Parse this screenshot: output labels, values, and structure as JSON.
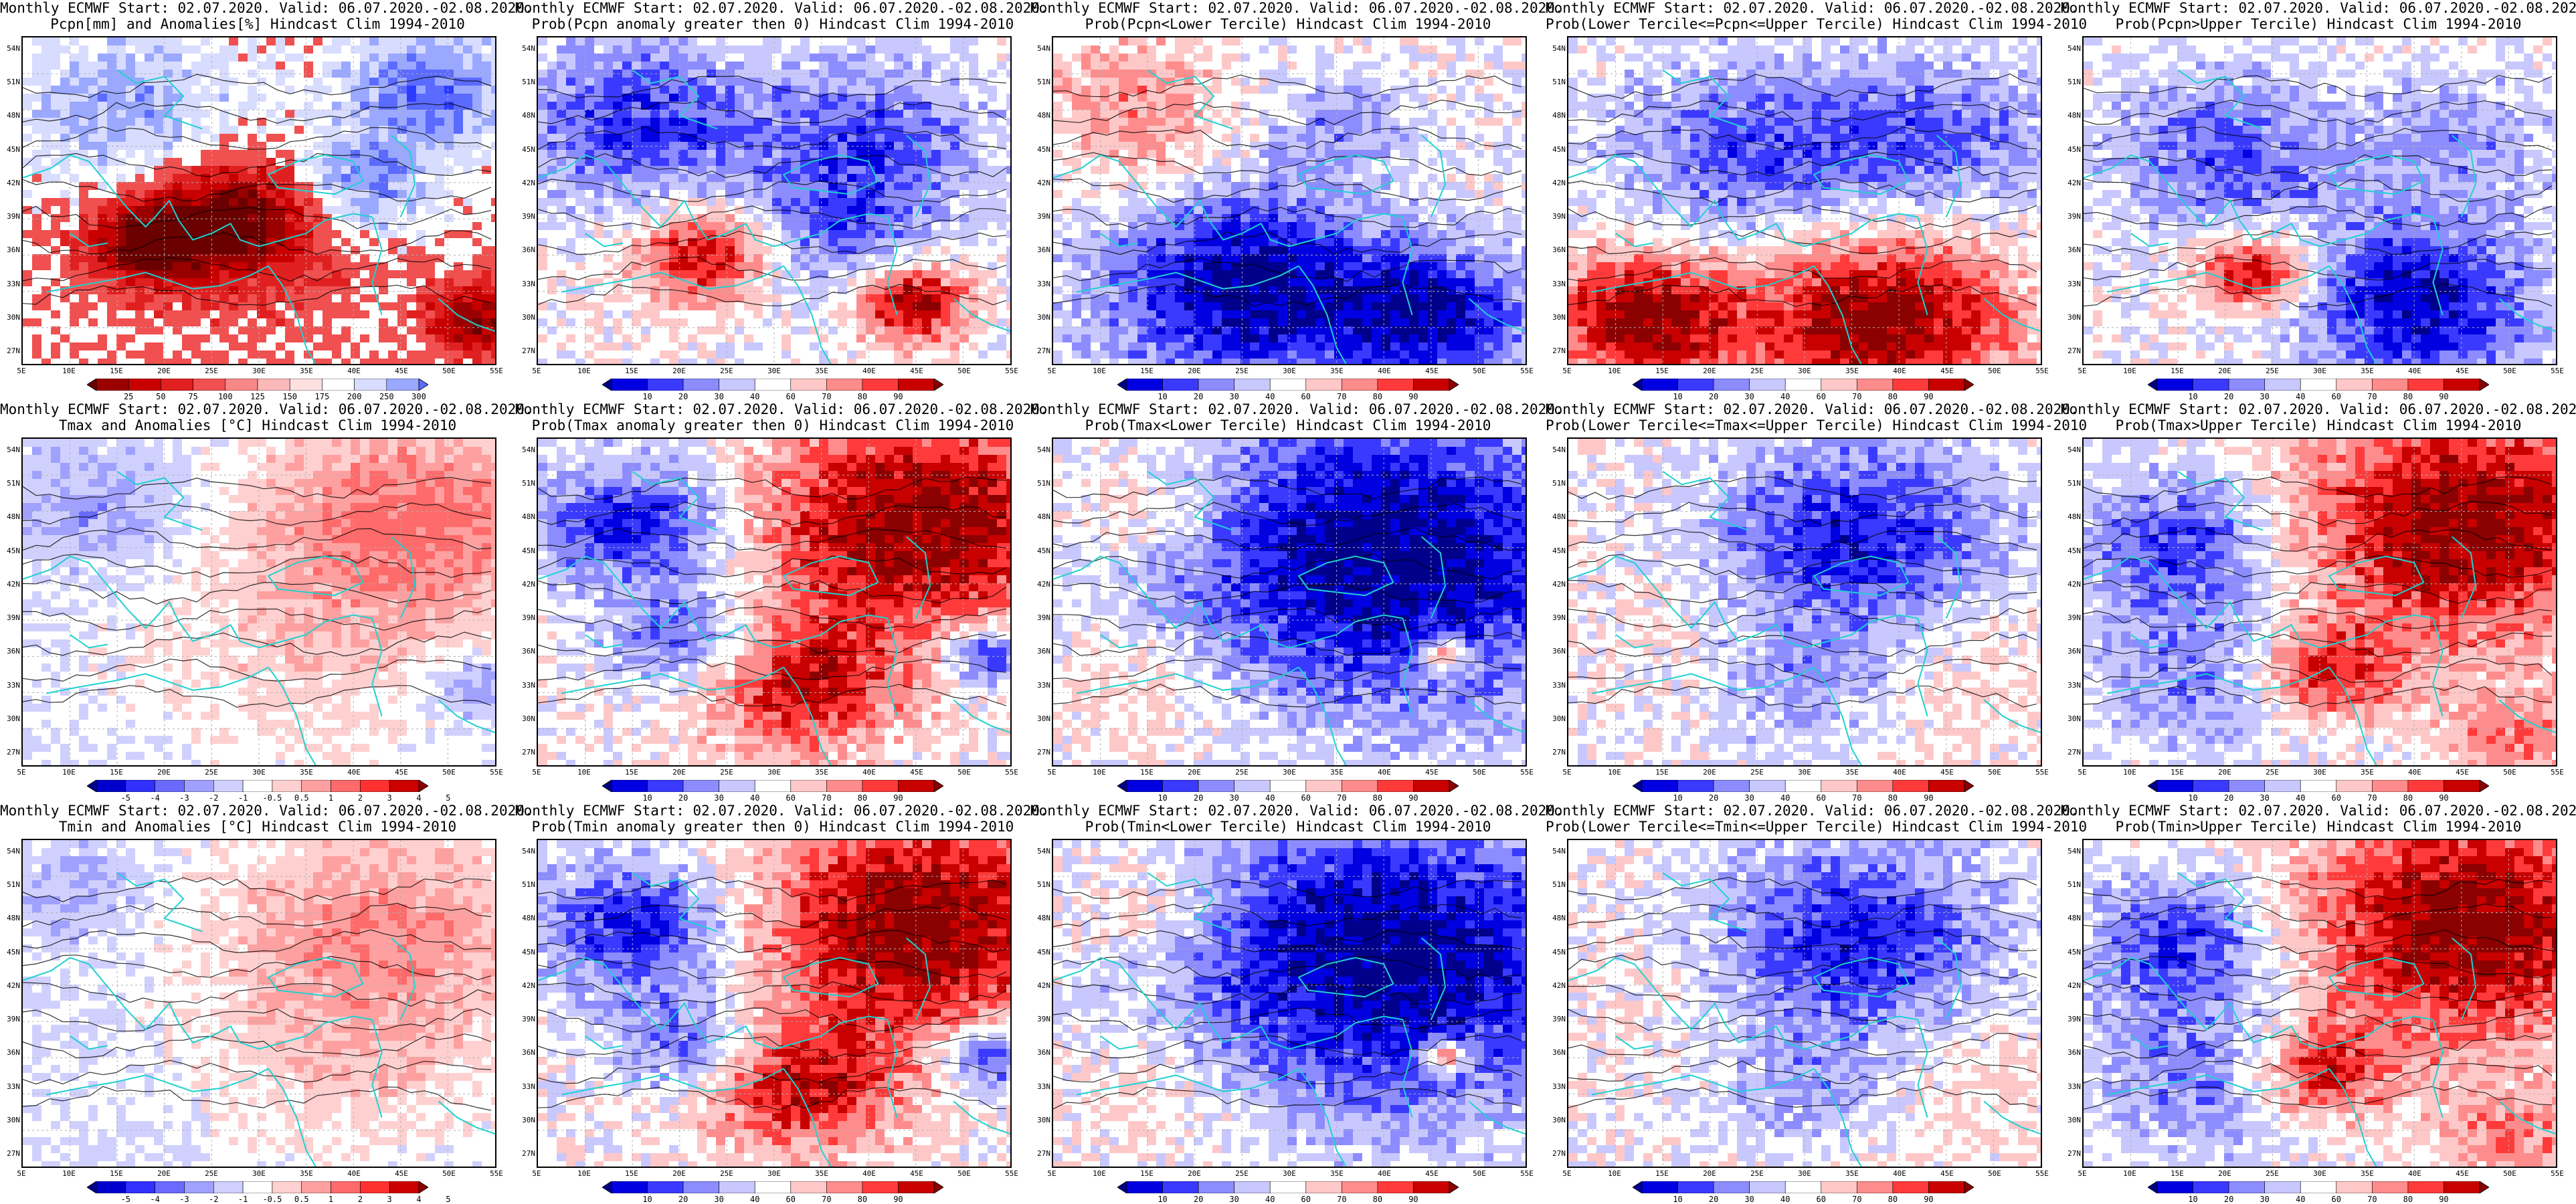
{
  "lat_labels": [
    "54N",
    "51N",
    "48N",
    "45N",
    "42N",
    "39N",
    "36N",
    "33N",
    "30N",
    "27N"
  ],
  "lon_labels": [
    "5E",
    "10E",
    "15E",
    "20E",
    "25E",
    "30E",
    "35E",
    "40E",
    "45E",
    "50E",
    "55E"
  ],
  "rows": [
    {
      "panels": [
        {
          "line1": "Monthly ECMWF Start: 02.07.2020. Valid: 06.07.2020.-02.08.2020.",
          "line2": "Pcpn[mm] and Anomalies[%] Hindcast Clim 1994-2010",
          "scale": "pcpn",
          "field": "pcpn_anom"
        },
        {
          "line1": "Monthly ECMWF Start: 02.07.2020. Valid: 06.07.2020.-02.08.2020.",
          "line2": "Prob(Pcpn anomaly greater then 0) Hindcast Clim 1994-2010",
          "scale": "prob",
          "field": "pcpn_gt0"
        },
        {
          "line1": "Monthly ECMWF Start: 02.07.2020. Valid: 06.07.2020.-02.08.2020.",
          "line2": "Prob(Pcpn<Lower Tercile) Hindcast Clim 1994-2010",
          "scale": "prob",
          "field": "pcpn_low"
        },
        {
          "line1": "Monthly ECMWF Start: 02.07.2020. Valid: 06.07.2020.-02.08.2020.",
          "line2": "Prob(Lower Tercile<=Pcpn<=Upper Tercile) Hindcast Clim 1994-2010",
          "scale": "prob",
          "field": "pcpn_mid"
        },
        {
          "line1": "Monthly ECMWF Start: 02.07.2020. Valid: 06.07.2020.-02.08.2020.",
          "line2": "Prob(Pcpn>Upper Tercile) Hindcast Clim 1994-2010",
          "scale": "prob",
          "field": "pcpn_up"
        }
      ]
    },
    {
      "panels": [
        {
          "line1": "Monthly ECMWF Start: 02.07.2020. Valid: 06.07.2020.-02.08.2020.",
          "line2": "Tmax and Anomalies [°C] Hindcast Clim 1994-2010",
          "scale": "temp",
          "field": "t_anom"
        },
        {
          "line1": "Monthly ECMWF Start: 02.07.2020. Valid: 06.07.2020.-02.08.2020.",
          "line2": "Prob(Tmax anomaly greater then 0) Hindcast Clim 1994-2010",
          "scale": "prob",
          "field": "t_gt0"
        },
        {
          "line1": "Monthly ECMWF Start: 02.07.2020. Valid: 06.07.2020.-02.08.2020.",
          "line2": "Prob(Tmax<Lower Tercile) Hindcast Clim 1994-2010",
          "scale": "prob",
          "field": "t_low"
        },
        {
          "line1": "Monthly ECMWF Start: 02.07.2020. Valid: 06.07.2020.-02.08.2020.",
          "line2": "Prob(Lower Tercile<=Tmax<=Upper Tercile) Hindcast Clim 1994-2010",
          "scale": "prob",
          "field": "t_mid"
        },
        {
          "line1": "Monthly ECMWF Start: 02.07.2020. Valid: 06.07.2020.-02.08.2020.",
          "line2": "Prob(Tmax>Upper Tercile) Hindcast Clim 1994-2010",
          "scale": "prob",
          "field": "t_up"
        }
      ]
    },
    {
      "panels": [
        {
          "line1": "Monthly ECMWF Start: 02.07.2020. Valid: 06.07.2020.-02.08.2020.",
          "line2": "Tmin and Anomalies [°C] Hindcast Clim 1994-2010",
          "scale": "temp",
          "field": "tn_anom"
        },
        {
          "line1": "Monthly ECMWF Start: 02.07.2020. Valid: 06.07.2020.-02.08.2020.",
          "line2": "Prob(Tmin anomaly greater then 0) Hindcast Clim 1994-2010",
          "scale": "prob",
          "field": "t_gt0"
        },
        {
          "line1": "Monthly ECMWF Start: 02.07.2020. Valid: 06.07.2020.-02.08.2020.",
          "line2": "Prob(Tmin<Lower Tercile) Hindcast Clim 1994-2010",
          "scale": "prob",
          "field": "t_low"
        },
        {
          "line1": "Monthly ECMWF Start: 02.07.2020. Valid: 06.07.2020.-02.08.2020.",
          "line2": "Prob(Lower Tercile<=Tmin<=Upper Tercile) Hindcast Clim 1994-2010",
          "scale": "prob",
          "field": "t_mid"
        },
        {
          "line1": "Monthly ECMWF Start: 02.07.2020. Valid: 06.07.2020.-02.08.2020.",
          "line2": "Prob(Tmin>Upper Tercile) Hindcast Clim 1994-2010",
          "scale": "prob",
          "field": "t_up"
        }
      ]
    }
  ],
  "colorbars": {
    "pcpn": {
      "labels": [
        "25",
        "50",
        "75",
        "100",
        "125",
        "150",
        "175",
        "200",
        "250",
        "300"
      ],
      "colors": [
        "#6a0000",
        "#9b0000",
        "#c80000",
        "#e02020",
        "#f05050",
        "#f88888",
        "#fbb8b8",
        "#fde0e0",
        "#ffffff",
        "#d8dcff",
        "#9aa8ff",
        "#5b6bff"
      ]
    },
    "prob": {
      "labels": [
        "10",
        "20",
        "30",
        "40",
        "60",
        "70",
        "80",
        "90"
      ],
      "colors": [
        "#00008b",
        "#0000e0",
        "#3a3aff",
        "#8c8cff",
        "#c8c8ff",
        "#ffffff",
        "#ffc8c8",
        "#ff8c8c",
        "#ff3a3a",
        "#c80000",
        "#8b0000"
      ]
    },
    "temp": {
      "labels": [
        "-5",
        "-4",
        "-3",
        "-2",
        "-1",
        "-0.5",
        "0.5",
        "1",
        "2",
        "3",
        "4",
        "5"
      ],
      "colors": [
        "#00008b",
        "#0000cd",
        "#3030ff",
        "#6a6aff",
        "#a0a0ff",
        "#d0d0ff",
        "#ffffff",
        "#ffd0d0",
        "#ffa0a0",
        "#ff6a6a",
        "#ff3030",
        "#cd0000",
        "#8b0000"
      ]
    }
  },
  "field_palettes": {
    "prob": [
      "#00008b",
      "#0000e0",
      "#3a3aff",
      "#8c8cff",
      "#c8c8ff",
      "#ffffff",
      "#ffc8c8",
      "#ff8c8c",
      "#ff3a3a",
      "#c80000",
      "#8b0000"
    ],
    "temp": [
      "#3030ff",
      "#6a6aff",
      "#a0a0ff",
      "#d0d0ff",
      "#ffffff",
      "#ffd0d0",
      "#ffa0a0",
      "#ff6a6a"
    ],
    "pcpn": [
      "#6a0000",
      "#9b0000",
      "#c80000",
      "#e02020",
      "#f05050",
      "#ffffff",
      "#d8dcff",
      "#9aa8ff",
      "#5b6bff",
      "#2b3bff"
    ]
  },
  "colors": {
    "coast": "#20d0d0",
    "contour": "#000000",
    "grid": "#b0b0b0"
  }
}
